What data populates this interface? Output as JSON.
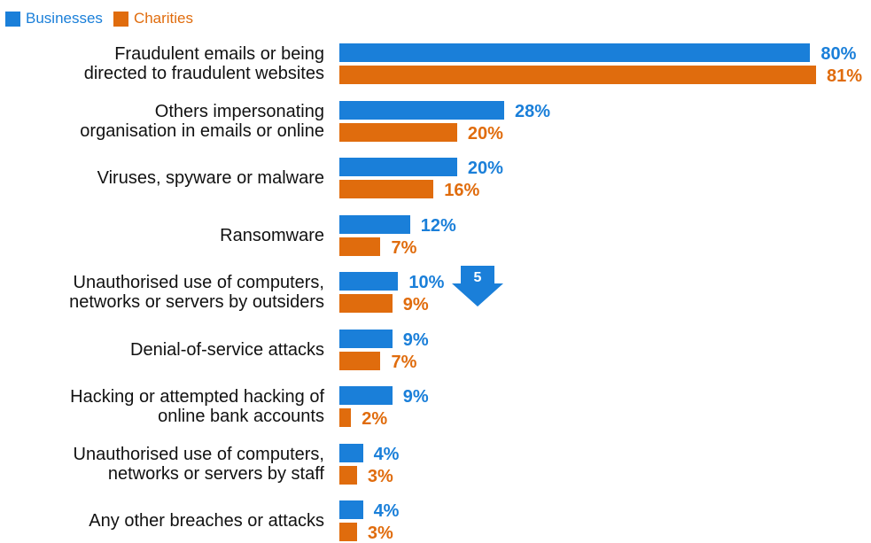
{
  "colors": {
    "businesses": "#1a7fd9",
    "charities": "#e06c0d",
    "badge": "#1a7fd9"
  },
  "legend": [
    {
      "label": "Businesses",
      "color": "#1a7fd9"
    },
    {
      "label": "Charities",
      "color": "#e06c0d"
    }
  ],
  "change_badge": {
    "value": "5",
    "icon": "down-arrow-icon"
  },
  "chart_data": {
    "type": "bar",
    "orientation": "horizontal",
    "categories": [
      "Fraudulent emails or being\ndirected to fraudulent websites",
      "Others impersonating\norganisation in emails or online",
      "Viruses, spyware or malware",
      "Ransomware",
      "Unauthorised use of computers,\nnetworks or servers by outsiders",
      "Denial-of-service attacks",
      "Hacking or attempted hacking of\nonline bank accounts",
      "Unauthorised use of computers,\nnetworks or servers by staff",
      "Any other breaches or attacks"
    ],
    "series": [
      {
        "name": "Businesses",
        "values": [
          80,
          28,
          20,
          12,
          10,
          9,
          9,
          4,
          4
        ],
        "labels": [
          "80%",
          "28%",
          "20%",
          "12%",
          "10%",
          "9%",
          "9%",
          "4%",
          "4%"
        ]
      },
      {
        "name": "Charities",
        "values": [
          81,
          20,
          16,
          7,
          9,
          7,
          2,
          3,
          3
        ],
        "labels": [
          "81%",
          "20%",
          "16%",
          "7%",
          "9%",
          "7%",
          "2%",
          "3%",
          "3%"
        ]
      }
    ],
    "xlim": [
      0,
      81
    ],
    "grid": false,
    "legend_position": "top-left"
  }
}
